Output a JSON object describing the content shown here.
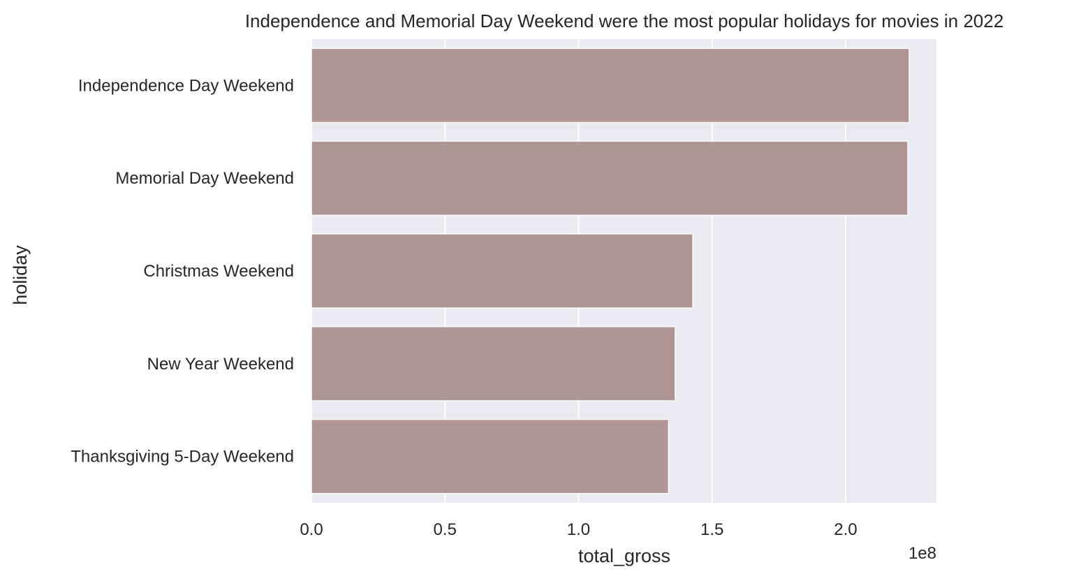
{
  "chart_data": {
    "type": "bar",
    "orientation": "horizontal",
    "title": "Independence and Memorial Day Weekend were the most popular holidays for movies in 2022",
    "xlabel": "total_gross",
    "ylabel": "holiday",
    "x_offset_label": "1e8",
    "xlim": [
      0,
      234000000
    ],
    "xticks": [
      "0.0",
      "0.5",
      "1.0",
      "1.5",
      "2.0"
    ],
    "xtick_values": [
      0,
      50000000,
      100000000,
      150000000,
      200000000
    ],
    "grid": true,
    "categories": [
      "Independence Day Weekend",
      "Memorial Day Weekend",
      "Christmas Weekend",
      "New Year Weekend",
      "Thanksgiving 5-Day Weekend"
    ],
    "values": [
      223800000,
      223300000,
      142800000,
      136200000,
      133700000
    ],
    "colors": {
      "bar": "#b19595",
      "background": "#eaeaf2",
      "grid": "#ffffff",
      "text": "#262626"
    }
  }
}
